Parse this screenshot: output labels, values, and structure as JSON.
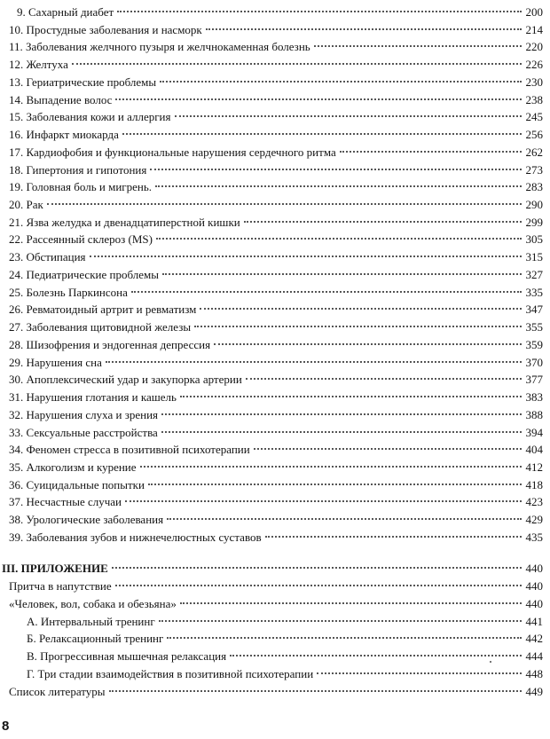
{
  "toc": [
    {
      "label": "9. Сахарный диабет",
      "page": "200"
    },
    {
      "label": "10. Простудные заболевания и насморк",
      "page": "214"
    },
    {
      "label": "11. Заболевания желчного пузыря и желчнокаменная болезнь",
      "page": "220"
    },
    {
      "label": "12. Желтуха",
      "page": "226"
    },
    {
      "label": "13. Гериатрические проблемы",
      "page": "230"
    },
    {
      "label": "14. Выпадение волос",
      "page": "238"
    },
    {
      "label": "15. Заболевания кожи и аллергия",
      "page": "245"
    },
    {
      "label": "16. Инфаркт миокарда",
      "page": "256"
    },
    {
      "label": "17. Кардиофобия и функциональные нарушения сердечного ритма",
      "page": "262"
    },
    {
      "label": "18. Гипертония и гипотония",
      "page": "273"
    },
    {
      "label": "19. Головная боль и мигрень.",
      "page": "283"
    },
    {
      "label": "20. Рак",
      "page": "290"
    },
    {
      "label": "21. Язва желудка и двенадцатиперстной кишки",
      "page": "299"
    },
    {
      "label": "22. Рассеянный склероз (MS)",
      "page": "305"
    },
    {
      "label": "23. Обстипация",
      "page": "315"
    },
    {
      "label": "24. Педиатрические проблемы",
      "page": "327"
    },
    {
      "label": "25. Болезнь Паркинсона",
      "page": "335"
    },
    {
      "label": "26. Ревматоидный артрит и ревматизм",
      "page": "347"
    },
    {
      "label": "27. Заболевания щитовидной железы",
      "page": "355"
    },
    {
      "label": "28. Шизофрения и эндогенная депрессия",
      "page": "359"
    },
    {
      "label": "29. Нарушения сна",
      "page": "370"
    },
    {
      "label": "30. Апоплексический удар и закупорка артерии",
      "page": "377"
    },
    {
      "label": "31. Нарушения глотания и кашель",
      "page": "383"
    },
    {
      "label": "32. Нарушения слуха и зрения",
      "page": "388"
    },
    {
      "label": "33. Сексуальные расстройства",
      "page": "394"
    },
    {
      "label": "34. Феномен стресса в позитивной психотерапии",
      "page": "404"
    },
    {
      "label": "35. Алкоголизм и курение",
      "page": "412"
    },
    {
      "label": "36. Суицидальные попытки",
      "page": "418"
    },
    {
      "label": "37. Несчастные случаи",
      "page": "423"
    },
    {
      "label": "38. Урологические заболевания",
      "page": "429"
    },
    {
      "label": "39. Заболевания зубов и нижнечелюстных суставов",
      "page": "435"
    }
  ],
  "appendix": [
    {
      "label": "III. ПРИЛОЖЕНИЕ",
      "page": "440",
      "level": 0
    },
    {
      "label": "Притча в напутствие",
      "page": "440",
      "level": 1
    },
    {
      "label": "«Человек, вол, собака и обезьяна»",
      "page": "440",
      "level": 1
    },
    {
      "label": "А. Интервальный тренинг",
      "page": "441",
      "level": 2
    },
    {
      "label": "Б. Релаксационный тренинг",
      "page": "442",
      "level": 2
    },
    {
      "label": "В. Прогрессивная мышечная релаксация",
      "page": "444",
      "level": 2
    },
    {
      "label": "Г. Три стадии взаимодействия в позитивной психотерапии",
      "page": "448",
      "level": 2
    },
    {
      "label": "Список литературы",
      "page": "449",
      "level": 1
    }
  ],
  "footer": {
    "page_number": "8"
  }
}
